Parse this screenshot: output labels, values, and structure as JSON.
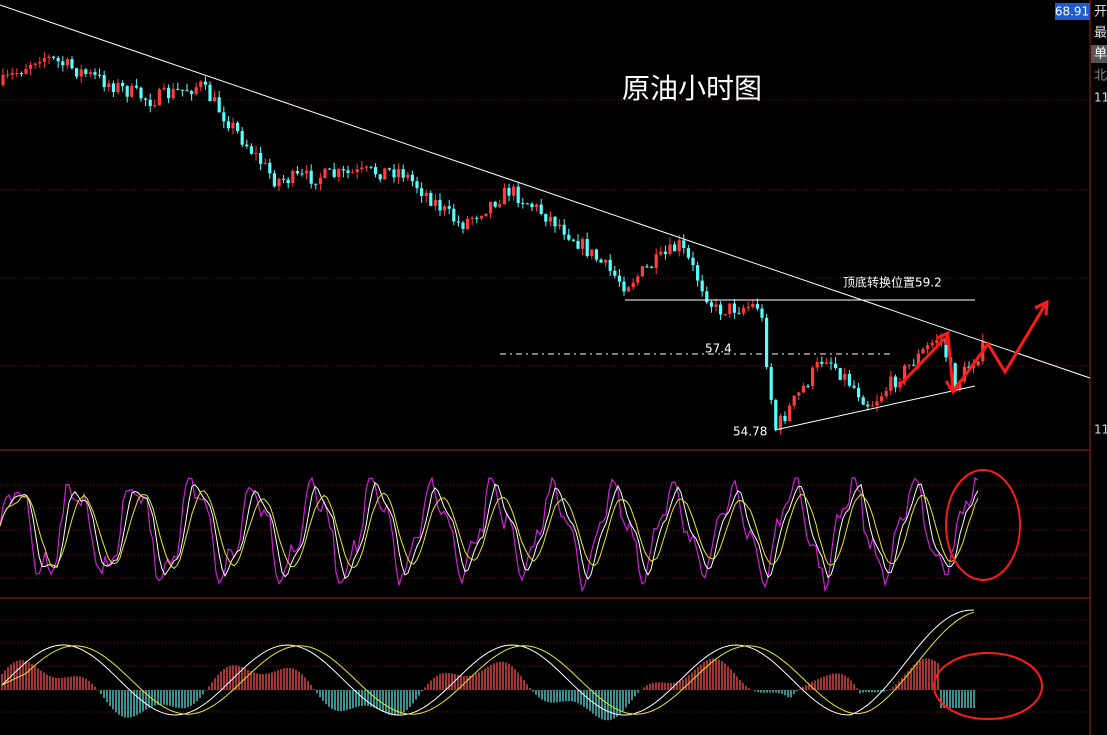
{
  "screen": {
    "title": "原油小时图",
    "annotations": {
      "turn": "顶底转换位置59.2",
      "mid": "57.4",
      "low": "54.78"
    },
    "sidebar": {
      "price": "68.91",
      "labels": [
        "开",
        "最",
        "单",
        "北"
      ],
      "axis": [
        "11",
        "11"
      ]
    }
  }
}
